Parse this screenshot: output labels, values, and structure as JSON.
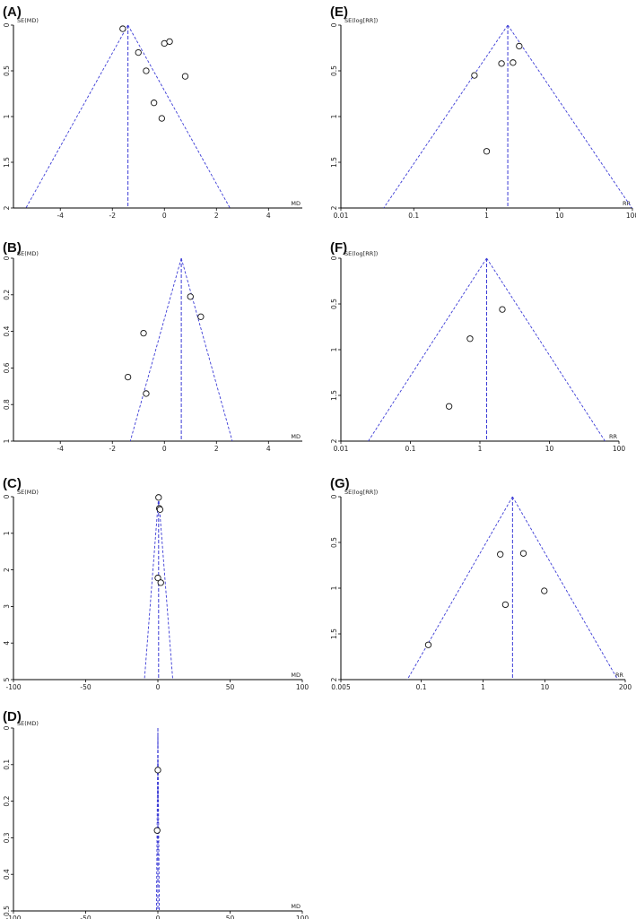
{
  "chart_data": [
    {
      "id": "A",
      "type": "scatter",
      "panel_label": "(A)",
      "scale": "linear",
      "ylabel": "SE(MD)",
      "xlabel": "MD",
      "xlim": [
        -5.8,
        5.3
      ],
      "ylim": [
        0,
        2
      ],
      "xticks": [
        -4,
        -2,
        0,
        2,
        4
      ],
      "yticks": [
        0,
        0.5,
        1,
        1.5,
        2
      ],
      "pooled": -1.4,
      "points": [
        [
          -1.6,
          0.04
        ],
        [
          -1.0,
          0.3
        ],
        [
          -0.7,
          0.5
        ],
        [
          0.0,
          0.2
        ],
        [
          0.2,
          0.18
        ],
        [
          0.8,
          0.56
        ],
        [
          -0.4,
          0.85
        ],
        [
          -0.1,
          1.02
        ]
      ]
    },
    {
      "id": "E",
      "type": "scatter",
      "panel_label": "(E)",
      "scale": "log",
      "ylabel": "SE(log[RR])",
      "xlabel": "RR",
      "xlim": [
        0.01,
        100
      ],
      "ylim": [
        0,
        2
      ],
      "xticks": [
        0.01,
        0.1,
        1,
        10,
        100
      ],
      "xtick_labels": [
        "0.01",
        "0.1",
        "1",
        "10",
        "100"
      ],
      "yticks": [
        0,
        0.5,
        1,
        1.5,
        2
      ],
      "pooled": 1.95,
      "points": [
        [
          2.8,
          0.23
        ],
        [
          1.6,
          0.42
        ],
        [
          2.3,
          0.41
        ],
        [
          0.68,
          0.55
        ],
        [
          1.0,
          1.38
        ]
      ]
    },
    {
      "id": "B",
      "type": "scatter",
      "panel_label": "(B)",
      "scale": "linear",
      "ylabel": "SE(MD)",
      "xlabel": "MD",
      "xlim": [
        -5.8,
        5.3
      ],
      "ylim": [
        0,
        1
      ],
      "xticks": [
        -4,
        -2,
        0,
        2,
        4
      ],
      "yticks": [
        0,
        0.2,
        0.4,
        0.6,
        0.8,
        1
      ],
      "pooled": 0.65,
      "points": [
        [
          1.0,
          0.21
        ],
        [
          1.4,
          0.32
        ],
        [
          -0.8,
          0.41
        ],
        [
          -1.4,
          0.65
        ],
        [
          -0.7,
          0.74
        ]
      ]
    },
    {
      "id": "F",
      "type": "scatter",
      "panel_label": "(F)",
      "scale": "log",
      "ylabel": "SE(log[RR])",
      "xlabel": "RR",
      "xlim": [
        0.01,
        100
      ],
      "ylim": [
        0,
        2
      ],
      "xticks": [
        0.01,
        0.1,
        1,
        10,
        100
      ],
      "xtick_labels": [
        "0.01",
        "0.1",
        "1",
        "10",
        "100"
      ],
      "yticks": [
        0,
        0.5,
        1,
        1.5,
        2
      ],
      "pooled": 1.25,
      "points": [
        [
          2.1,
          0.56
        ],
        [
          0.72,
          0.88
        ],
        [
          0.36,
          1.62
        ]
      ]
    },
    {
      "id": "C",
      "type": "scatter",
      "panel_label": "(C)",
      "scale": "linear",
      "ylabel": "SE(MD)",
      "xlabel": "MD",
      "xlim": [
        -100,
        100
      ],
      "ylim": [
        0,
        5
      ],
      "xticks": [
        -100,
        -50,
        0,
        50,
        100
      ],
      "yticks": [
        0,
        1,
        2,
        3,
        4,
        5
      ],
      "pooled": 0.5,
      "points": [
        [
          0.5,
          0.02
        ],
        [
          1.0,
          0.32
        ],
        [
          1.5,
          0.35
        ],
        [
          0.0,
          2.22
        ],
        [
          2.0,
          2.35
        ]
      ]
    },
    {
      "id": "G",
      "type": "scatter",
      "panel_label": "(G)",
      "scale": "log",
      "ylabel": "SE(log[RR])",
      "xlabel": "RR",
      "xlim": [
        0.005,
        200
      ],
      "ylim": [
        0,
        2
      ],
      "xticks": [
        0.005,
        0.1,
        1,
        10,
        200
      ],
      "xtick_labels": [
        "0.005",
        "0.1",
        "1",
        "10",
        "200"
      ],
      "yticks": [
        0,
        0.5,
        1,
        1.5,
        2
      ],
      "pooled": 3.0,
      "points": [
        [
          1.9,
          0.63
        ],
        [
          4.5,
          0.62
        ],
        [
          9.8,
          1.03
        ],
        [
          2.3,
          1.18
        ],
        [
          0.13,
          1.62
        ]
      ]
    },
    {
      "id": "D",
      "type": "scatter",
      "panel_label": "(D)",
      "scale": "linear",
      "ylabel": "SE(MD)",
      "xlabel": "MD",
      "xlim": [
        -100,
        100
      ],
      "ylim": [
        0,
        0.5
      ],
      "xticks": [
        -100,
        -50,
        0,
        50,
        100
      ],
      "yticks": [
        0,
        0.1,
        0.2,
        0.3,
        0.4,
        0.5
      ],
      "pooled": 0.0,
      "points": [
        [
          0.0,
          0.115
        ],
        [
          -0.5,
          0.28
        ]
      ]
    }
  ]
}
